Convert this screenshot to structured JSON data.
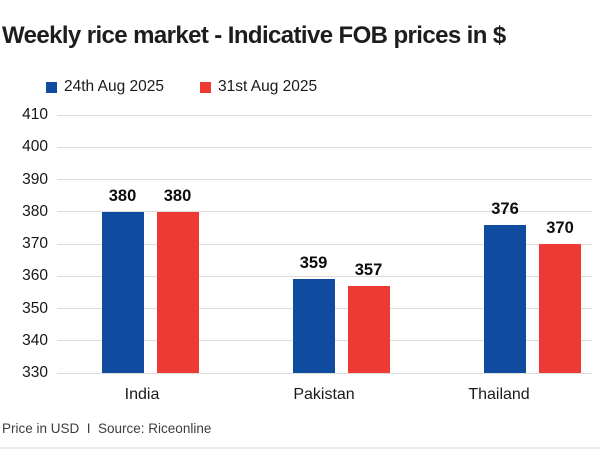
{
  "title": "Weekly rice market - Indicative FOB prices in $",
  "footer": "Price in USD  I  Source: Riceonline",
  "legend": [
    {
      "label": "24th Aug 2025",
      "color": "#0F4C9F"
    },
    {
      "label": "31st Aug 2025",
      "color": "#EE3A35"
    }
  ],
  "colors": {
    "series_blue": "#0F4C9F",
    "series_red": "#EE3A35",
    "gridline": "#dcdcdc",
    "text": "#1a1a1a",
    "background": "#ffffff"
  },
  "chart_data": {
    "type": "bar",
    "title": "Weekly rice market - Indicative FOB prices in $",
    "categories": [
      "India",
      "Pakistan",
      "Thailand"
    ],
    "series": [
      {
        "name": "24th Aug 2025",
        "color": "#0F4C9F",
        "values": [
          380,
          359,
          376
        ]
      },
      {
        "name": "31st Aug 2025",
        "color": "#EE3A35",
        "values": [
          380,
          357,
          370
        ]
      }
    ],
    "xlabel": "",
    "ylabel": "",
    "ylim": [
      330,
      410
    ],
    "yticks": [
      410,
      400,
      390,
      380,
      370,
      360,
      350,
      340,
      330
    ],
    "grid": true,
    "legend_position": "top-left",
    "value_labels": true,
    "source_note": "Price in USD  I  Source: Riceonline"
  }
}
